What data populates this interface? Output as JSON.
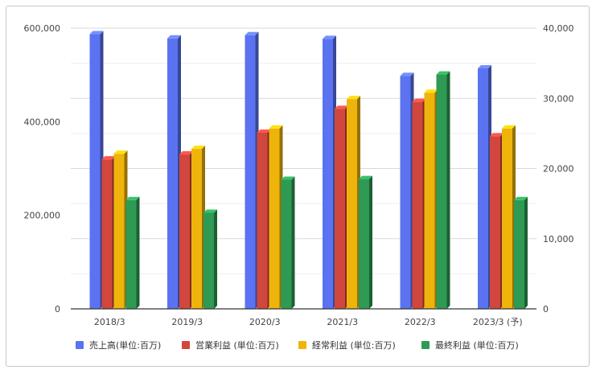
{
  "chart_data": {
    "type": "bar",
    "title": "",
    "categories": [
      "2018/3",
      "2019/3",
      "2020/3",
      "2021/3",
      "2022/3",
      "2023/3 (予)"
    ],
    "series": [
      {
        "name": "売上高(単位:百万)",
        "axis": "left",
        "color": "#5b73f0",
        "values": [
          587000,
          578000,
          585000,
          577000,
          498000,
          514000
        ]
      },
      {
        "name": "営業利益 (単位:百万)",
        "axis": "right",
        "color": "#d1463d",
        "values": [
          21300,
          22000,
          25100,
          28500,
          29500,
          24600
        ]
      },
      {
        "name": "経常利益 (単位:百万)",
        "axis": "right",
        "color": "#eeb40c",
        "values": [
          22100,
          22800,
          25700,
          29900,
          30800,
          25700
        ]
      },
      {
        "name": "最終利益 (単位:百万)",
        "axis": "right",
        "color": "#2e9a53",
        "values": [
          15500,
          13700,
          18400,
          18500,
          33400,
          15500
        ]
      }
    ],
    "y_left": {
      "min": 0,
      "max": 600000,
      "ticks": [
        "0",
        "200,000",
        "400,000",
        "600,000"
      ],
      "tick_values": [
        0,
        200000,
        400000,
        600000
      ]
    },
    "y_right": {
      "min": 0,
      "max": 40000,
      "ticks": [
        "0",
        "10,000",
        "20,000",
        "30,000",
        "40,000"
      ],
      "tick_values": [
        0,
        10000,
        20000,
        30000,
        40000
      ]
    },
    "grid": true,
    "legend_position": "bottom"
  }
}
